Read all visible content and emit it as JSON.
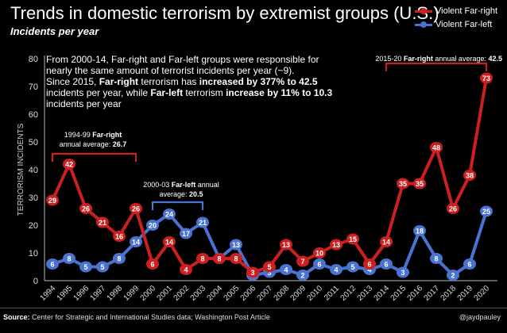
{
  "header": {
    "title": "Trends in domestic terrorism by extremist groups (U.S.)",
    "subtitle": "Incidents per year"
  },
  "legend": [
    {
      "label": "Violent Far-right",
      "color": "#cc1f1f"
    },
    {
      "label": "Violent Far-left",
      "color": "#4a73d1"
    }
  ],
  "annotations": {
    "note_line1": "From 2000-14, Far-right and Far-left groups were responsible for",
    "note_line2": "nearly the same amount of terrorist incidents per year (~9).",
    "note_line3": "Since 2015, ",
    "note_line3_bold1": "Far-right",
    "note_line3_mid": " terrorism has ",
    "note_line3_bold2": "increased by 377% to 42.5",
    "note_line4": "incidents per year, while ",
    "note_line4_bold1": "Far-left",
    "note_line4_mid": " terrorism ",
    "note_line4_bold2": "increase by 11% to 10.3",
    "note_line5": "incidents per year",
    "bracket1_pre": "1994-99 ",
    "bracket1_bold": "Far-right",
    "bracket1_line2": "annual average: ",
    "bracket1_val": "26.7",
    "bracket2_pre": "2000-03 ",
    "bracket2_bold": "Far-left",
    "bracket2_post": " annual",
    "bracket2_line2": "average: ",
    "bracket2_val": "20.5",
    "bracket3_pre": "2015-20 ",
    "bracket3_bold": "Far-right",
    "bracket3_post": " annual average: ",
    "bracket3_val": "42.5"
  },
  "footer": {
    "source_label": "Source:",
    "source_text": " Center for Strategic and International Studies data; Washington Post Article",
    "handle": "@jaydpauley"
  },
  "chart_data": {
    "type": "line",
    "x": [
      "1994",
      "1995",
      "1996",
      "1997",
      "1998",
      "1999",
      "2000",
      "2001",
      "2002",
      "2003",
      "2004",
      "2005",
      "2006",
      "2007",
      "2008",
      "2009",
      "2010",
      "2011",
      "2012",
      "2013",
      "2014",
      "2015",
      "2016",
      "2017",
      "2018",
      "2019",
      "2020"
    ],
    "series": [
      {
        "name": "Violent Far-right",
        "color": "#cc1f1f",
        "values": [
          29,
          42,
          26,
          21,
          16,
          26,
          6,
          14,
          4,
          8,
          8,
          8,
          3,
          5,
          13,
          7,
          10,
          13,
          15,
          6,
          14,
          35,
          35,
          48,
          26,
          38,
          73
        ]
      },
      {
        "name": "Violent Far-left",
        "color": "#4a73d1",
        "values": [
          6,
          8,
          5,
          5,
          8,
          14,
          20,
          24,
          17,
          21,
          8,
          13,
          2,
          3,
          4,
          2,
          6,
          4,
          5,
          4,
          6,
          3,
          18,
          8,
          2,
          6,
          25
        ]
      }
    ],
    "ylabel": "TERRORISM INCIDENTS",
    "ylim": [
      0,
      80
    ],
    "yticks": [
      0,
      10,
      20,
      30,
      40,
      50,
      60,
      70,
      80
    ],
    "grid": false
  }
}
